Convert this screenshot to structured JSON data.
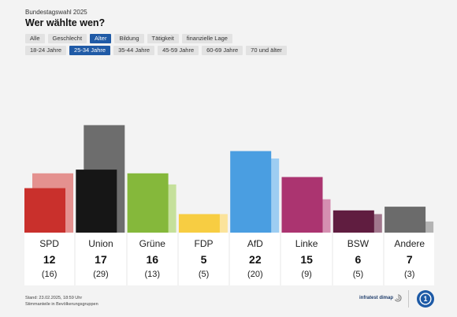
{
  "header": {
    "overline": "Bundestagswahl 2025",
    "title": "Wer wählte wen?"
  },
  "filters": {
    "categories": [
      "Alle",
      "Geschlecht",
      "Alter",
      "Bildung",
      "Tätigkeit",
      "finanzielle Lage"
    ],
    "active_category": "Alter",
    "age_groups": [
      "18-24 Jahre",
      "25-34 Jahre",
      "35-44 Jahre",
      "45-59 Jahre",
      "60-69 Jahre",
      "70 und älter"
    ],
    "active_age_group": "25-34 Jahre"
  },
  "chart_data": {
    "type": "bar",
    "categories": [
      "SPD",
      "Union",
      "Grüne",
      "FDP",
      "AfD",
      "Linke",
      "BSW",
      "Andere"
    ],
    "series": [
      {
        "values": [
          12,
          17,
          16,
          5,
          22,
          15,
          6,
          7
        ]
      },
      {
        "values": [
          16,
          29,
          13,
          5,
          20,
          9,
          5,
          3
        ]
      }
    ],
    "current_labels": [
      "12",
      "17",
      "16",
      "5",
      "22",
      "15",
      "6",
      "7"
    ],
    "previous_labels": [
      "(16)",
      "(29)",
      "(13)",
      "(5)",
      "(20)",
      "(9)",
      "(5)",
      "(3)"
    ],
    "colors": {
      "current": [
        "#c9302c",
        "#161616",
        "#85b83b",
        "#f7cd42",
        "#4a9ee1",
        "#ab3470",
        "#601d40",
        "#6b6b6b"
      ],
      "previous": [
        "#e4918f",
        "#6d6d6d",
        "#c5e09b",
        "#fbe39b",
        "#9dcdf2",
        "#d58fb1",
        "#a1778d",
        "#b3b3b3"
      ]
    },
    "ylim": [
      0,
      30
    ]
  },
  "footer": {
    "stand": "Stand: 23.02.2025, 18:59 Uhr",
    "note": "Stimmanteile in Bevölkerungsgruppen",
    "source": "infratest dimap"
  }
}
